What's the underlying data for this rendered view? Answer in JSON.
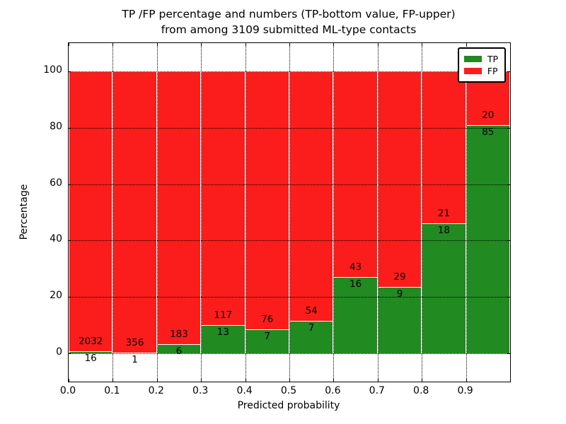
{
  "title": {
    "line1": "TP /FP percentage and numbers (TP-bottom value, FP-upper)",
    "line2": "from among 3109 submitted ML-type contacts"
  },
  "axes": {
    "xlabel": "Predicted probability",
    "ylabel": "Percentage",
    "xtick_labels": [
      "0.0",
      "0.1",
      "0.2",
      "0.3",
      "0.4",
      "0.5",
      "0.6",
      "0.7",
      "0.8",
      "0.9"
    ],
    "ytick_labels": [
      "0",
      "20",
      "40",
      "60",
      "80",
      "100"
    ],
    "yticks": [
      0,
      20,
      40,
      60,
      80,
      100
    ],
    "ylim": [
      -10,
      110
    ]
  },
  "legend": {
    "items": [
      {
        "label": "TP",
        "color": "#218a21"
      },
      {
        "label": "FP",
        "color": "#fb1d1b"
      }
    ],
    "position": "upper right"
  },
  "chart_data": {
    "type": "bar",
    "stacked": true,
    "normalized_to_percent": true,
    "title": "TP /FP percentage and numbers (TP-bottom value, FP-upper) from among 3109 submitted ML-type contacts",
    "xlabel": "Predicted probability",
    "ylabel": "Percentage",
    "categories": [
      "0.0-0.1",
      "0.1-0.2",
      "0.2-0.3",
      "0.3-0.4",
      "0.4-0.5",
      "0.5-0.6",
      "0.6-0.7",
      "0.7-0.8",
      "0.8-0.9",
      "0.9-1.0"
    ],
    "series": [
      {
        "name": "TP",
        "color": "#218a21",
        "counts": [
          16,
          1,
          6,
          13,
          7,
          7,
          16,
          9,
          18,
          85
        ]
      },
      {
        "name": "FP",
        "color": "#fb1d1b",
        "counts": [
          2032,
          356,
          183,
          117,
          76,
          54,
          43,
          29,
          21,
          20
        ]
      }
    ],
    "total_contacts": 3109,
    "bar_labels": "TP count shown below segment boundary, FP count shown above segment boundary",
    "ylim": [
      -10,
      110
    ],
    "yticks": [
      0,
      20,
      40,
      60,
      80,
      100
    ],
    "xticks": [
      0.0,
      0.1,
      0.2,
      0.3,
      0.4,
      0.5,
      0.6,
      0.7,
      0.8,
      0.9
    ],
    "grid": "dotted, drawn over bars",
    "legend_position": "upper right"
  }
}
